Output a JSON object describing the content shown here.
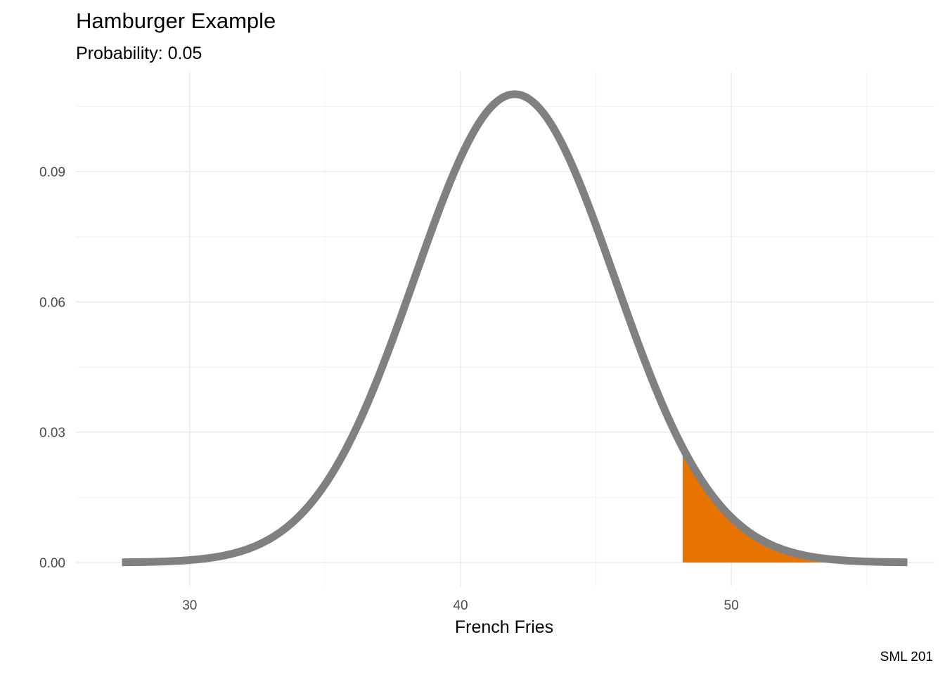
{
  "chart_data": {
    "type": "area",
    "title": "Hamburger Example",
    "subtitle": "Probability: 0.05",
    "xlabel": "French Fries",
    "ylabel": "",
    "caption": "SML 201",
    "distribution": {
      "mean": 42,
      "sd": 3.7
    },
    "series": [
      {
        "type": "line",
        "x": [
          27.5,
          28,
          29,
          30,
          31,
          32,
          33,
          34,
          35,
          36,
          37,
          38,
          39,
          40,
          41,
          42,
          43,
          44,
          45,
          46,
          47,
          48,
          48.2,
          49,
          50,
          51,
          52,
          53,
          54,
          55,
          56,
          56.5
        ],
        "y": [
          0.0003,
          0.0006,
          0.0011,
          0.0021,
          0.004,
          0.007,
          0.0118,
          0.0188,
          0.0284,
          0.0405,
          0.0546,
          0.0694,
          0.0833,
          0.0944,
          0.1044,
          0.1078,
          0.1044,
          0.0944,
          0.0833,
          0.0694,
          0.0546,
          0.0264,
          0.0245,
          0.018,
          0.011,
          0.0066,
          0.0036,
          0.0018,
          0.0009,
          0.0004,
          0.0002,
          0.0001
        ],
        "color": "#808080"
      },
      {
        "type": "area",
        "x_from": 48.2,
        "x_to": 56.5,
        "color": "#e87400"
      }
    ],
    "xlim": [
      25.8,
      57.5
    ],
    "ylim": [
      -0.0055,
      0.113
    ],
    "x_ticks": [
      30,
      40,
      50
    ],
    "x_tick_labels": [
      "30",
      "40",
      "50"
    ],
    "y_ticks": [
      0,
      0.03,
      0.06,
      0.09
    ],
    "y_tick_labels": [
      "0.00",
      "0.03",
      "0.06",
      "0.09"
    ],
    "grid": true
  }
}
